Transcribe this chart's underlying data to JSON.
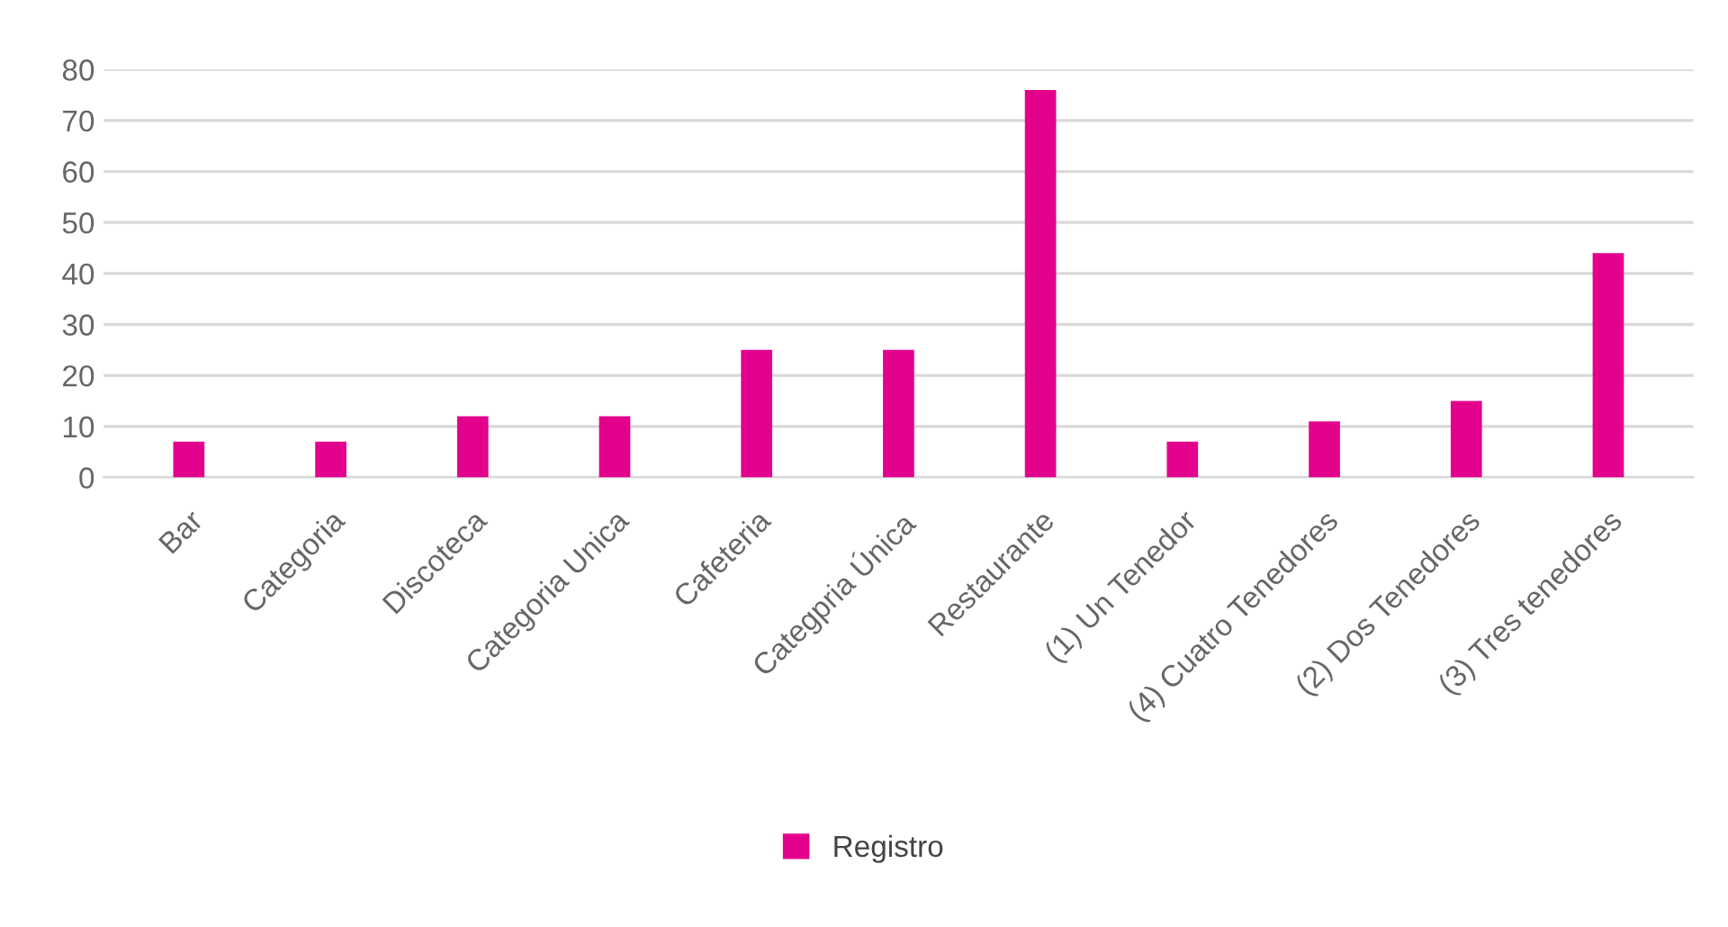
{
  "chart_data": {
    "type": "bar",
    "categories": [
      "Bar",
      "Categoria",
      "Discoteca",
      "Categoria Unica",
      "Cafeteria",
      "Categpria Única",
      "Restaurante",
      "(1) Un Tenedor",
      "(4) Cuatro Tenedores",
      "(2) Dos Tenedores",
      "(3) Tres tenedores"
    ],
    "series": [
      {
        "name": "Registro",
        "color": "#e3008c",
        "values": [
          7,
          7,
          12,
          12,
          25,
          25,
          76,
          7,
          11,
          15,
          44
        ]
      }
    ],
    "ylim": [
      0,
      80
    ],
    "yticks": [
      0,
      10,
      20,
      30,
      40,
      50,
      60,
      70,
      80
    ],
    "grid": "y",
    "legend": "bottom"
  }
}
